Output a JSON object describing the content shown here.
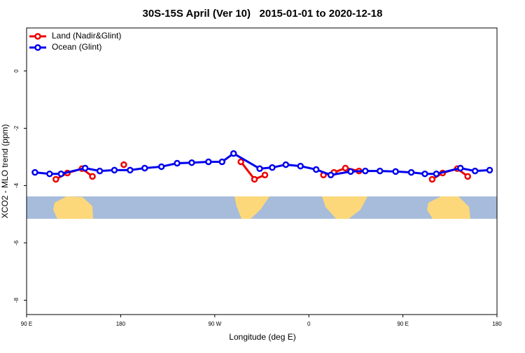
{
  "chart_data": {
    "type": "line",
    "title": "30S-15S April (Ver 10)   2015-01-01 to 2020-12-18",
    "x_label": "Longitude (deg E)",
    "y_label": "XCO2 - MLO trend (ppm)",
    "xlim": [
      90,
      540
    ],
    "ylim": [
      -8.5,
      1.5
    ],
    "xticks": [
      {
        "value": 90,
        "label": "90 E"
      },
      180,
      {
        "value": 270,
        "label": "90 W"
      },
      {
        "value": 360,
        "label": "0"
      },
      {
        "value": 450,
        "label": "90 E"
      },
      {
        "value": 540,
        "label": "180"
      }
    ],
    "yticks": [
      0,
      -2,
      -4,
      -6,
      -8
    ],
    "legend": "top-left",
    "series": [
      {
        "name": "Land (Nadir&Glint)",
        "color": "#ee0000",
        "x": [
          118,
          129,
          143,
          153,
          null,
          183,
          null,
          295,
          308,
          318,
          null,
          374,
          384,
          395,
          408,
          null,
          478,
          488,
          502,
          512
        ],
        "values": [
          -3.78,
          -3.56,
          -3.41,
          -3.68,
          null,
          -3.27,
          null,
          -3.17,
          -3.78,
          -3.63,
          null,
          -3.63,
          -3.54,
          -3.39,
          -3.49,
          null,
          -3.78,
          -3.56,
          -3.41,
          -3.68
        ]
      },
      {
        "name": "Ocean (Glint)",
        "color": "#0000ee",
        "x": [
          98,
          112,
          123,
          146,
          160,
          174,
          189,
          203,
          219,
          234,
          248,
          264,
          277,
          288,
          313,
          325,
          338,
          352,
          367,
          381,
          400,
          414,
          428,
          443,
          458,
          471,
          482,
          505,
          519,
          533
        ],
        "values": [
          -3.54,
          -3.59,
          -3.59,
          -3.39,
          -3.49,
          -3.46,
          -3.46,
          -3.39,
          -3.34,
          -3.22,
          -3.2,
          -3.17,
          -3.17,
          -2.88,
          -3.41,
          -3.37,
          -3.27,
          -3.32,
          -3.44,
          -3.63,
          -3.51,
          -3.49,
          -3.49,
          -3.51,
          -3.54,
          -3.59,
          -3.59,
          -3.39,
          -3.49,
          -3.46
        ]
      }
    ]
  }
}
